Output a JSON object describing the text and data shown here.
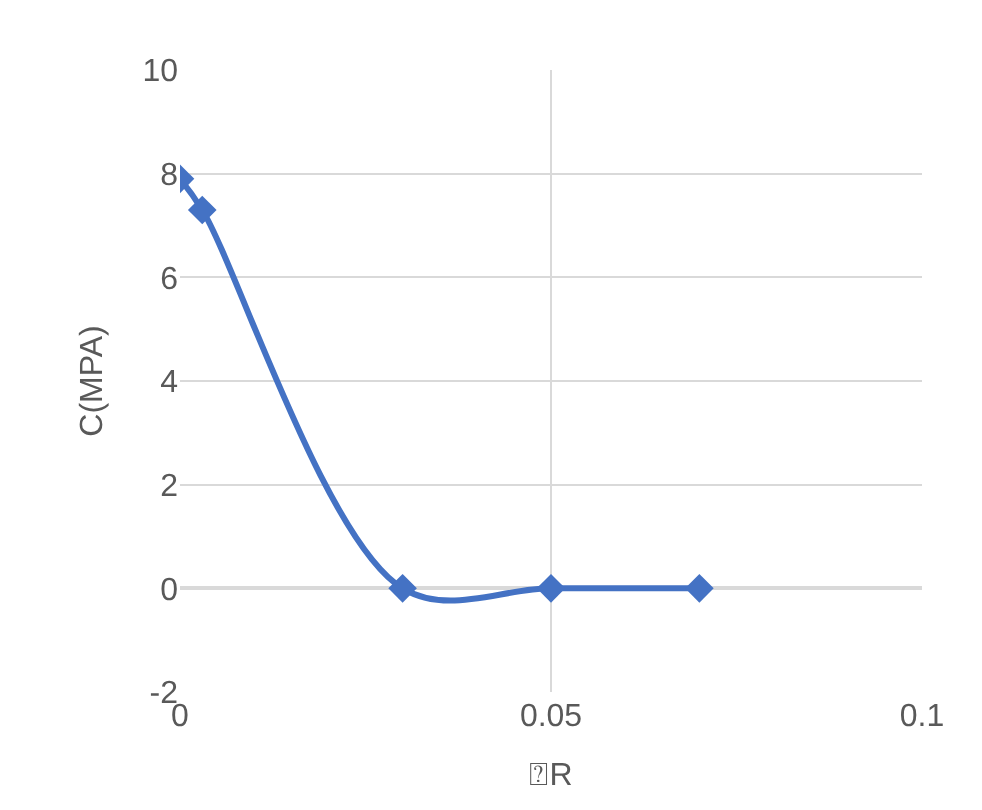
{
  "chart_data": {
    "type": "line",
    "xlabel": "⍰R",
    "ylabel": "C(MPA)",
    "x": [
      0,
      0.003,
      0.03,
      0.05,
      0.07
    ],
    "series": [
      {
        "color": "#4472c4",
        "values": [
          7.9,
          7.3,
          0,
          0,
          0
        ]
      }
    ],
    "xlim": [
      0,
      0.1
    ],
    "xticks": [
      0,
      0.05,
      0.1
    ],
    "ylim": [
      -2,
      10
    ],
    "yticks": [
      -2,
      0,
      2,
      4,
      6,
      8,
      10
    ],
    "grid": true,
    "marker": "diamond",
    "line_style": "solid"
  }
}
